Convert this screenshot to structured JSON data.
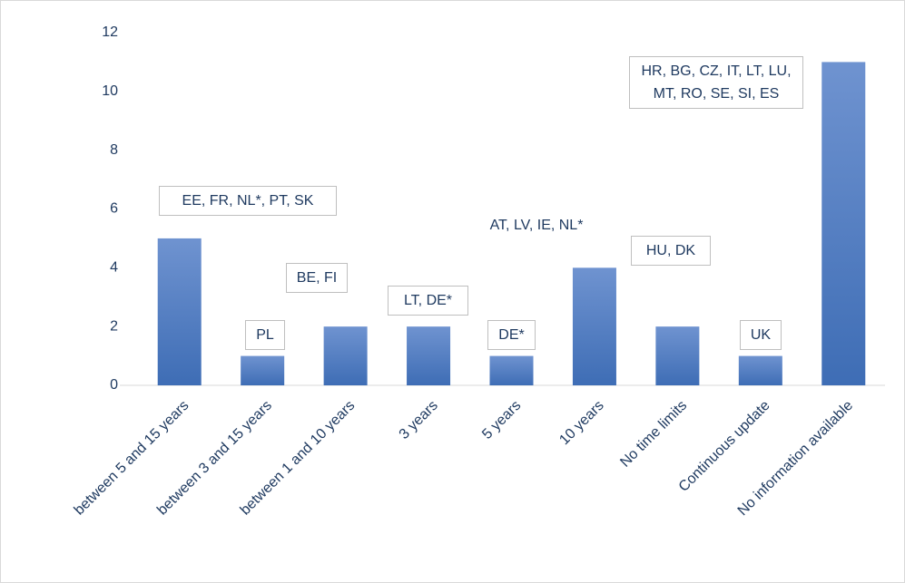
{
  "chart_data": {
    "type": "bar",
    "categories": [
      "between 5 and 15 years",
      "between 3 and 15 years",
      "between 1 and 10 years",
      "3 years",
      "5 years",
      "10 years",
      "No time limits",
      "Continuous update",
      "No information available"
    ],
    "values": [
      5,
      1,
      2,
      2,
      1,
      4,
      2,
      1,
      11
    ],
    "annotations": [
      "EE, FR, NL*, PT, SK",
      "PL",
      "BE, FI",
      "LT, DE*",
      "DE*",
      "AT, LV, IE, NL*",
      "HU, DK",
      "UK",
      "HR, BG, CZ, IT, LT, LU, MT, RO, SE, SI, ES"
    ],
    "color": "#4a78c0",
    "ylim": [
      0,
      12
    ],
    "yticks": [
      0,
      2,
      4,
      6,
      8,
      10,
      12
    ],
    "grid": false
  }
}
